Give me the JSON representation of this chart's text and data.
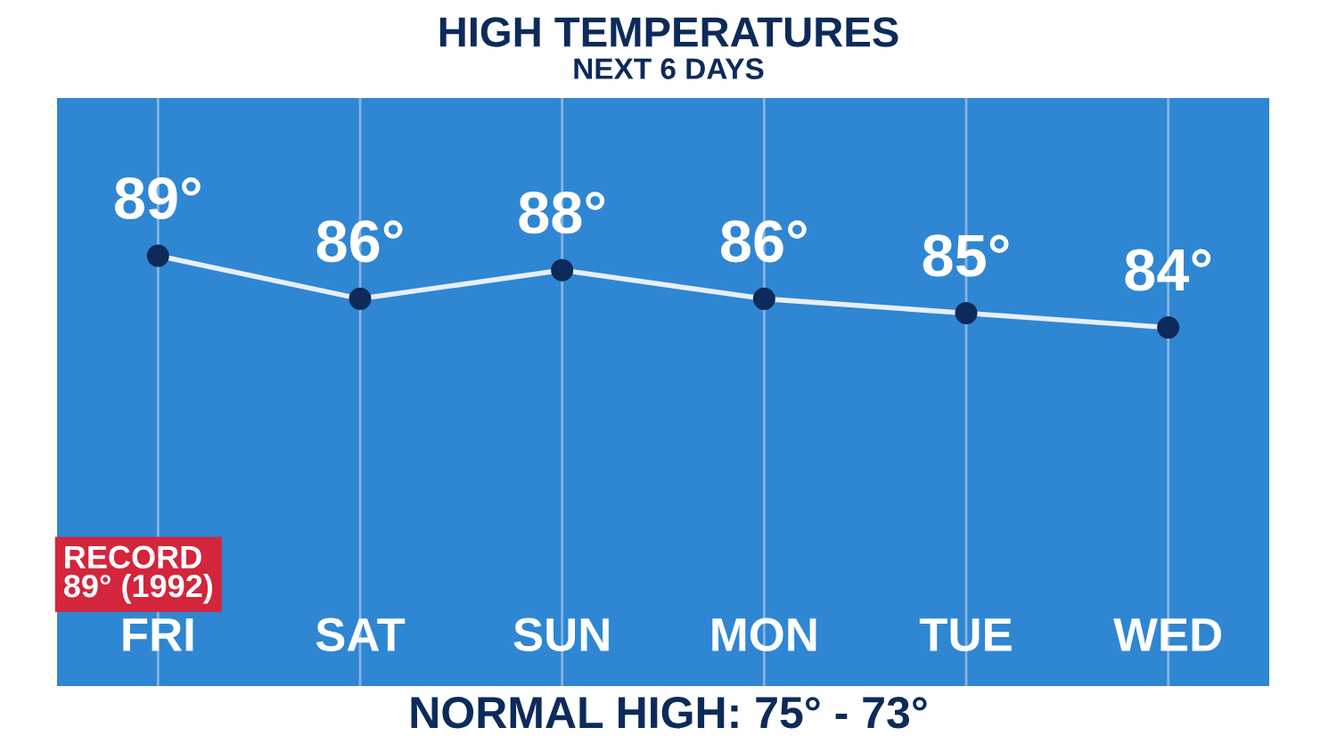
{
  "chart_data": {
    "type": "line",
    "title": "HIGH TEMPERATURES",
    "subtitle": "NEXT 6 DAYS",
    "categories": [
      "FRI",
      "SAT",
      "SUN",
      "MON",
      "TUE",
      "WED"
    ],
    "series": [
      {
        "color": "#e8eef8",
        "values": [
          89,
          86,
          88,
          86,
          85,
          84
        ],
        "value_labels": [
          "89°",
          "86°",
          "88°",
          "86°",
          "85°",
          "84°"
        ]
      }
    ],
    "marker": "circle",
    "grid": "x",
    "legend": false,
    "tick_labels": "x",
    "annotations": [
      "RECORD\n89° (1992)",
      "NORMAL HIGH: 75° - 73°"
    ]
  }
}
